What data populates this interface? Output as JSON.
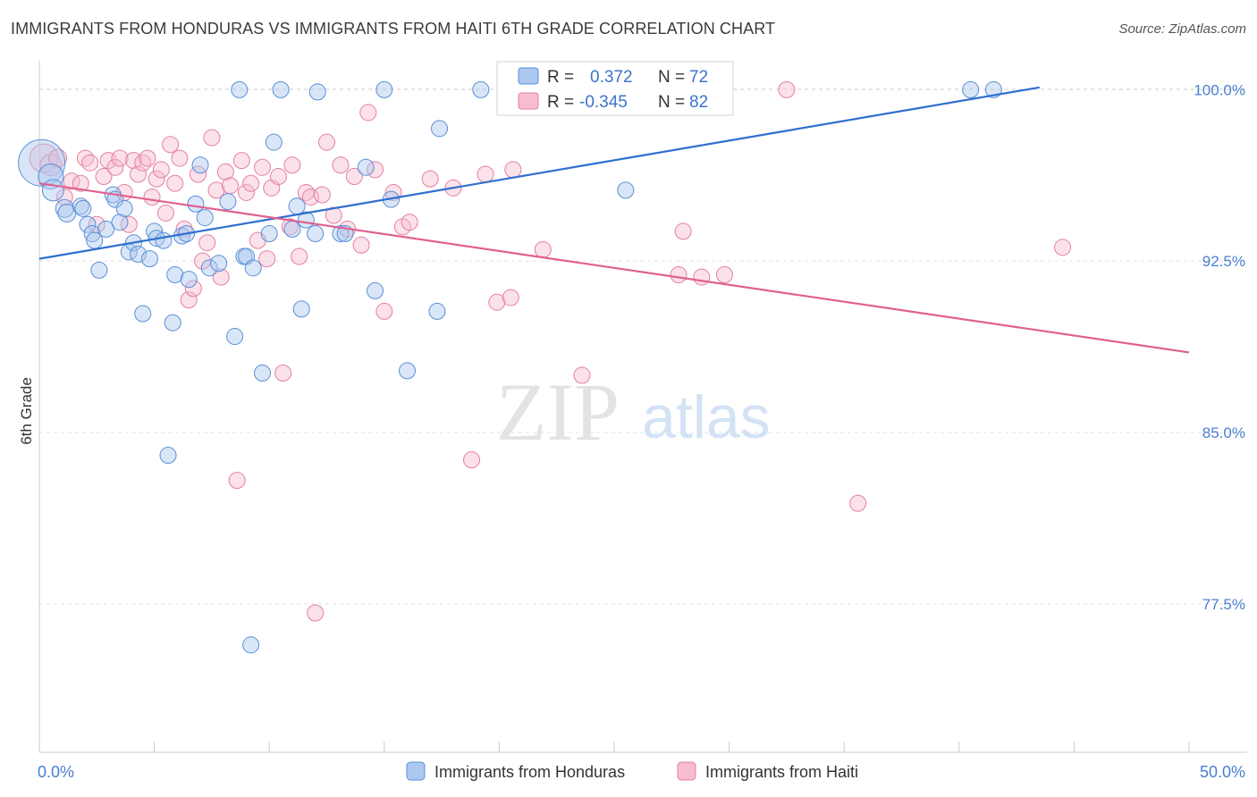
{
  "header": {
    "title": "IMMIGRANTS FROM HONDURAS VS IMMIGRANTS FROM HAITI 6TH GRADE CORRELATION CHART",
    "source": "Source: ZipAtlas.com"
  },
  "watermark": {
    "zip": "ZIP",
    "atlas": "atlas"
  },
  "stats": {
    "honduras": {
      "r_label": "R =",
      "r_value": "0.372",
      "n_label": "N =",
      "n_value": "72"
    },
    "haiti": {
      "r_label": "R =",
      "r_value": "-0.345",
      "n_label": "N =",
      "n_value": "82"
    }
  },
  "colors": {
    "honduras_fill": "#aac8f0",
    "honduras_stroke": "#5b8fd6",
    "honduras_line": "#2f6fd0",
    "haiti_fill": "#f7bcd0",
    "haiti_stroke": "#e57fa2",
    "haiti_line": "#e0608f",
    "tick_text": "#4a7fd0",
    "grid": "#dddddd"
  },
  "chart_data": {
    "type": "scatter",
    "title": "IMMIGRANTS FROM HONDURAS VS IMMIGRANTS FROM HAITI 6TH GRADE CORRELATION CHART",
    "xlabel": "",
    "ylabel": "6th Grade",
    "xlim": [
      0,
      50
    ],
    "ylim": [
      71,
      101.5
    ],
    "x_tick_labels": [
      "0.0%",
      "50.0%"
    ],
    "y_ticks": [
      77.5,
      85.0,
      92.5,
      100.0
    ],
    "y_tick_labels": [
      "77.5%",
      "85.0%",
      "92.5%",
      "100.0%"
    ],
    "grid": true,
    "legend_position": "bottom-center",
    "series": [
      {
        "name": "Immigrants from Honduras",
        "color": "#aac8f0",
        "trend": {
          "x": [
            0,
            43.5
          ],
          "y": [
            92.6,
            100.1
          ]
        },
        "points": [
          [
            0.1,
            96.8,
            26
          ],
          [
            0.5,
            96.2,
            14
          ],
          [
            0.6,
            95.6,
            12
          ],
          [
            1.1,
            94.8,
            10
          ],
          [
            1.2,
            94.6,
            10
          ],
          [
            1.8,
            94.9,
            9
          ],
          [
            1.9,
            94.8,
            9
          ],
          [
            2.1,
            94.1,
            9
          ],
          [
            2.3,
            93.7,
            9
          ],
          [
            2.4,
            93.4,
            9
          ],
          [
            2.6,
            92.1,
            9
          ],
          [
            2.9,
            93.9,
            9
          ],
          [
            3.2,
            95.4,
            9
          ],
          [
            3.3,
            95.2,
            9
          ],
          [
            3.5,
            94.2,
            9
          ],
          [
            3.7,
            94.8,
            9
          ],
          [
            3.9,
            92.9,
            9
          ],
          [
            4.1,
            93.3,
            9
          ],
          [
            4.3,
            92.8,
            9
          ],
          [
            4.5,
            90.2,
            9
          ],
          [
            4.8,
            92.6,
            9
          ],
          [
            5.0,
            93.8,
            9
          ],
          [
            5.1,
            93.5,
            9
          ],
          [
            5.4,
            93.4,
            9
          ],
          [
            5.6,
            84.0,
            9
          ],
          [
            5.8,
            89.8,
            9
          ],
          [
            5.9,
            91.9,
            9
          ],
          [
            6.2,
            93.6,
            9
          ],
          [
            6.4,
            93.7,
            9
          ],
          [
            6.5,
            91.7,
            9
          ],
          [
            6.8,
            95.0,
            9
          ],
          [
            7.0,
            96.7,
            9
          ],
          [
            7.2,
            94.4,
            9
          ],
          [
            7.4,
            92.2,
            9
          ],
          [
            7.8,
            92.4,
            9
          ],
          [
            8.2,
            95.1,
            9
          ],
          [
            8.5,
            89.2,
            9
          ],
          [
            8.7,
            100.0,
            9
          ],
          [
            8.9,
            92.7,
            9
          ],
          [
            9.0,
            92.7,
            9
          ],
          [
            9.2,
            75.7,
            9
          ],
          [
            9.3,
            92.2,
            9
          ],
          [
            9.7,
            87.6,
            9
          ],
          [
            10.0,
            93.7,
            9
          ],
          [
            10.2,
            97.7,
            9
          ],
          [
            10.5,
            100.0,
            9
          ],
          [
            11.0,
            93.9,
            9
          ],
          [
            11.2,
            94.9,
            9
          ],
          [
            11.4,
            90.4,
            9
          ],
          [
            11.6,
            94.3,
            9
          ],
          [
            12.0,
            93.7,
            9
          ],
          [
            12.1,
            99.9,
            9
          ],
          [
            13.1,
            93.7,
            9
          ],
          [
            13.3,
            93.7,
            9
          ],
          [
            14.2,
            96.6,
            9
          ],
          [
            14.6,
            91.2,
            9
          ],
          [
            15.0,
            100.0,
            9
          ],
          [
            15.3,
            95.2,
            9
          ],
          [
            16.0,
            87.7,
            9
          ],
          [
            17.3,
            90.3,
            9
          ],
          [
            17.4,
            98.3,
            9
          ],
          [
            19.2,
            100.0,
            9
          ],
          [
            22.8,
            100.0,
            9
          ],
          [
            23.8,
            100.0,
            9
          ],
          [
            25.2,
            100.0,
            9
          ],
          [
            26.0,
            100.0,
            9
          ],
          [
            27.5,
            100.0,
            9
          ],
          [
            28.2,
            100.0,
            9
          ],
          [
            28.9,
            100.0,
            9
          ],
          [
            25.5,
            95.6,
            9
          ],
          [
            40.5,
            100.0,
            9
          ],
          [
            41.5,
            100.0,
            9
          ]
        ]
      },
      {
        "name": "Immigrants from Haiti",
        "color": "#f7bcd0",
        "trend": {
          "x": [
            0,
            50
          ],
          "y": [
            95.9,
            88.5
          ]
        },
        "points": [
          [
            0.2,
            97.0,
            16
          ],
          [
            0.5,
            96.7,
            12
          ],
          [
            0.8,
            97.0,
            10
          ],
          [
            1.1,
            95.3,
            9
          ],
          [
            1.4,
            96.0,
            9
          ],
          [
            1.8,
            95.9,
            9
          ],
          [
            2.0,
            97.0,
            9
          ],
          [
            2.2,
            96.8,
            9
          ],
          [
            2.5,
            94.1,
            9
          ],
          [
            2.8,
            96.2,
            9
          ],
          [
            3.0,
            96.9,
            9
          ],
          [
            3.3,
            96.6,
            9
          ],
          [
            3.5,
            97.0,
            9
          ],
          [
            3.7,
            95.5,
            9
          ],
          [
            3.9,
            94.1,
            9
          ],
          [
            4.1,
            96.9,
            9
          ],
          [
            4.3,
            96.3,
            9
          ],
          [
            4.5,
            96.8,
            9
          ],
          [
            4.7,
            97.0,
            9
          ],
          [
            4.9,
            95.3,
            9
          ],
          [
            5.1,
            96.1,
            9
          ],
          [
            5.3,
            96.5,
            9
          ],
          [
            5.5,
            94.6,
            9
          ],
          [
            5.7,
            97.6,
            9
          ],
          [
            5.9,
            95.9,
            9
          ],
          [
            6.1,
            97.0,
            9
          ],
          [
            6.3,
            93.9,
            9
          ],
          [
            6.5,
            90.8,
            9
          ],
          [
            6.7,
            91.3,
            9
          ],
          [
            6.9,
            96.3,
            9
          ],
          [
            7.1,
            92.5,
            9
          ],
          [
            7.3,
            93.3,
            9
          ],
          [
            7.5,
            97.9,
            9
          ],
          [
            7.7,
            95.6,
            9
          ],
          [
            7.9,
            91.8,
            9
          ],
          [
            8.1,
            96.4,
            9
          ],
          [
            8.3,
            95.8,
            9
          ],
          [
            8.6,
            82.9,
            9
          ],
          [
            8.8,
            96.9,
            9
          ],
          [
            9.0,
            95.5,
            9
          ],
          [
            9.2,
            95.9,
            9
          ],
          [
            9.5,
            93.4,
            9
          ],
          [
            9.7,
            96.6,
            9
          ],
          [
            9.9,
            92.6,
            9
          ],
          [
            10.1,
            95.7,
            9
          ],
          [
            10.4,
            96.2,
            9
          ],
          [
            10.6,
            87.6,
            9
          ],
          [
            10.9,
            94.0,
            9
          ],
          [
            11.0,
            96.7,
            9
          ],
          [
            11.3,
            92.7,
            9
          ],
          [
            11.6,
            95.5,
            9
          ],
          [
            11.8,
            95.3,
            9
          ],
          [
            12.0,
            77.1,
            9
          ],
          [
            12.3,
            95.4,
            9
          ],
          [
            12.5,
            97.7,
            9
          ],
          [
            12.8,
            94.5,
            9
          ],
          [
            13.1,
            96.7,
            9
          ],
          [
            13.4,
            93.9,
            9
          ],
          [
            13.7,
            96.2,
            9
          ],
          [
            14.0,
            93.2,
            9
          ],
          [
            14.3,
            99.0,
            9
          ],
          [
            14.6,
            96.5,
            9
          ],
          [
            15.0,
            90.3,
            9
          ],
          [
            15.4,
            95.5,
            9
          ],
          [
            15.8,
            94.0,
            9
          ],
          [
            16.1,
            94.2,
            9
          ],
          [
            17.0,
            96.1,
            9
          ],
          [
            18.0,
            95.7,
            9
          ],
          [
            18.8,
            83.8,
            9
          ],
          [
            19.4,
            96.3,
            9
          ],
          [
            19.9,
            90.7,
            9
          ],
          [
            20.5,
            90.9,
            9
          ],
          [
            20.6,
            96.5,
            9
          ],
          [
            21.9,
            93.0,
            9
          ],
          [
            23.6,
            87.5,
            9
          ],
          [
            27.8,
            91.9,
            9
          ],
          [
            28.0,
            93.8,
            9
          ],
          [
            28.8,
            91.8,
            9
          ],
          [
            29.8,
            91.9,
            9
          ],
          [
            32.5,
            100.0,
            9
          ],
          [
            35.6,
            81.9,
            9
          ],
          [
            44.5,
            93.1,
            9
          ]
        ]
      }
    ]
  }
}
